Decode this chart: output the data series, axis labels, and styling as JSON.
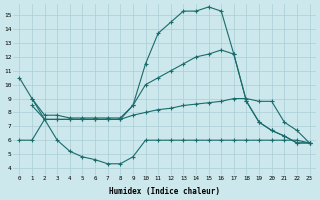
{
  "xlabel": "Humidex (Indice chaleur)",
  "bg_color": "#cce8ec",
  "grid_color": "#b0d4d8",
  "line_color": "#1a6b6b",
  "xlim": [
    -0.5,
    23.5
  ],
  "ylim": [
    3.5,
    15.8
  ],
  "yticks": [
    4,
    5,
    6,
    7,
    8,
    9,
    10,
    11,
    12,
    13,
    14,
    15
  ],
  "xticks": [
    0,
    1,
    2,
    3,
    4,
    5,
    6,
    7,
    8,
    9,
    10,
    11,
    12,
    13,
    14,
    15,
    16,
    17,
    18,
    19,
    20,
    21,
    22,
    23
  ],
  "line1_x": [
    0,
    1,
    2,
    3,
    4,
    5,
    6,
    7,
    8,
    9,
    10,
    11,
    12,
    13,
    14,
    15,
    16,
    17,
    18,
    19,
    20,
    21,
    22,
    23
  ],
  "line1_y": [
    10.5,
    9.0,
    7.5,
    7.5,
    7.5,
    7.5,
    7.5,
    7.5,
    7.5,
    8.5,
    11.5,
    13.7,
    14.5,
    15.3,
    15.3,
    15.6,
    15.3,
    12.2,
    8.8,
    7.3,
    6.7,
    6.3,
    5.8,
    5.8
  ],
  "line2_x": [
    1,
    2,
    3,
    4,
    5,
    6,
    7,
    8,
    9,
    10,
    11,
    12,
    13,
    14,
    15,
    16,
    17,
    18,
    19,
    20,
    21,
    22,
    23
  ],
  "line2_y": [
    9.0,
    7.8,
    7.8,
    7.6,
    7.6,
    7.6,
    7.6,
    7.6,
    8.5,
    10.0,
    10.5,
    11.0,
    11.5,
    12.0,
    12.2,
    12.5,
    12.2,
    8.8,
    7.3,
    6.7,
    6.3,
    5.8,
    5.8
  ],
  "line3_x": [
    1,
    2,
    3,
    4,
    5,
    6,
    7,
    8,
    9,
    10,
    11,
    12,
    13,
    14,
    15,
    16,
    17,
    18,
    19,
    20,
    21,
    22,
    23
  ],
  "line3_y": [
    8.5,
    7.5,
    7.5,
    7.5,
    7.5,
    7.5,
    7.5,
    7.5,
    7.8,
    8.0,
    8.2,
    8.3,
    8.5,
    8.6,
    8.7,
    8.8,
    9.0,
    9.0,
    8.8,
    8.8,
    7.3,
    6.7,
    5.8
  ],
  "line4_x": [
    0,
    1,
    2,
    3,
    4,
    5,
    6,
    7,
    8,
    9,
    10,
    11,
    12,
    13,
    14,
    15,
    16,
    17,
    18,
    19,
    20,
    21,
    22,
    23
  ],
  "line4_y": [
    6.0,
    6.0,
    7.5,
    6.0,
    5.2,
    4.8,
    4.6,
    4.3,
    4.3,
    4.8,
    6.0,
    6.0,
    6.0,
    6.0,
    6.0,
    6.0,
    6.0,
    6.0,
    6.0,
    6.0,
    6.0,
    6.0,
    6.0,
    5.8
  ]
}
